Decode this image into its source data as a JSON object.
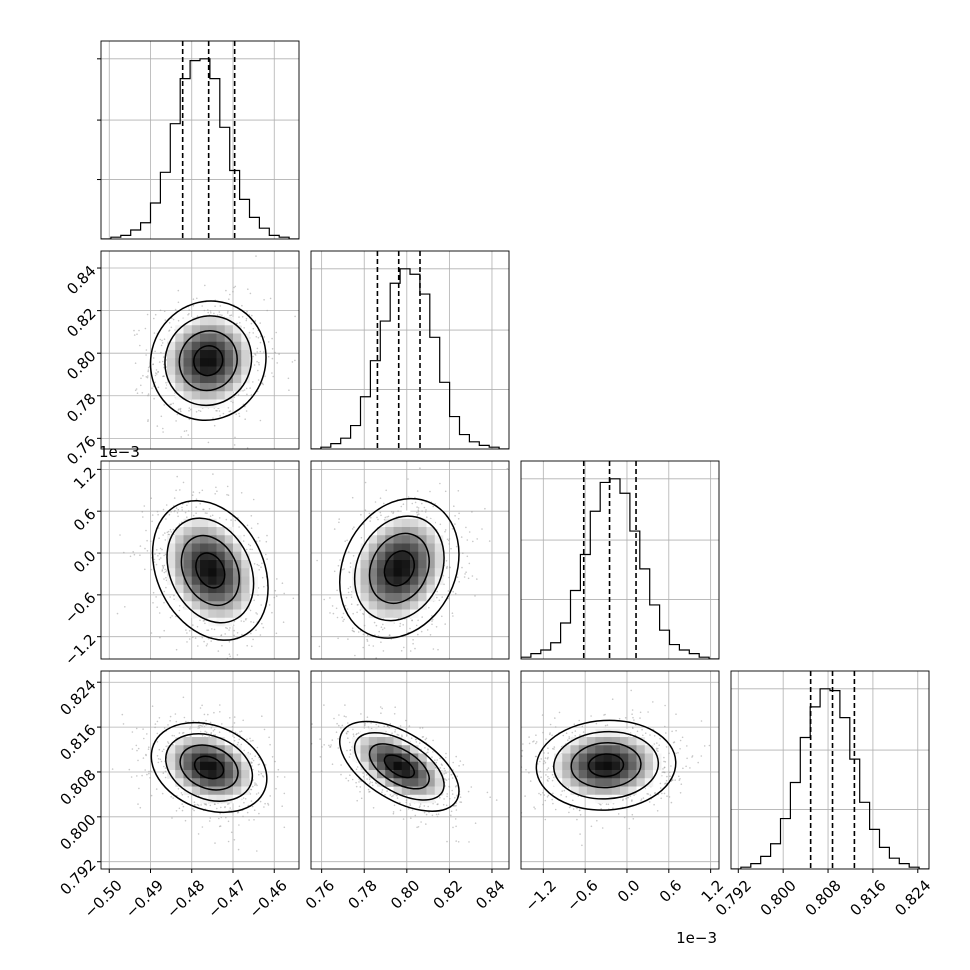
{
  "chart_data": {
    "type": "corner",
    "title": "",
    "parameters": [
      {
        "range": [
          -0.502,
          -0.454
        ],
        "ticks": [
          -0.5,
          -0.49,
          -0.48,
          -0.47,
          -0.46
        ],
        "tick_labels": [
          "−0.50",
          "−0.49",
          "−0.48",
          "−0.47",
          "−0.46"
        ],
        "offset_label": "",
        "quantiles": [
          -0.4822,
          -0.4759,
          -0.4696
        ],
        "hist_counts": [
          0,
          1,
          2,
          5,
          9,
          20,
          37,
          64,
          89,
          99,
          100,
          89,
          62,
          38,
          22,
          12,
          6,
          2,
          1,
          0
        ]
      },
      {
        "range": [
          0.755,
          0.848
        ],
        "ticks": [
          0.76,
          0.78,
          0.8,
          0.82,
          0.84
        ],
        "tick_labels": [
          "0.76",
          "0.78",
          "0.80",
          "0.82",
          "0.84"
        ],
        "offset_label": "",
        "quantiles": [
          0.7862,
          0.7962,
          0.8062
        ],
        "hist_counts": [
          0,
          1,
          3,
          6,
          13,
          29,
          49,
          71,
          92,
          100,
          97,
          86,
          62,
          37,
          18,
          8,
          4,
          2,
          1,
          0
        ]
      },
      {
        "range": [
          -1.52,
          1.32
        ],
        "ticks": [
          -1.2,
          -0.6,
          0.0,
          0.6,
          1.2
        ],
        "tick_labels": [
          "−1.2",
          "−0.6",
          "0.0",
          "0.6",
          "1.2"
        ],
        "offset_label": "1e−3",
        "quantiles": [
          -0.62,
          -0.25,
          0.13
        ],
        "hist_counts": [
          1,
          3,
          5,
          9,
          20,
          38,
          58,
          82,
          98,
          100,
          92,
          71,
          50,
          30,
          16,
          8,
          5,
          3,
          1,
          0
        ]
      },
      {
        "range": [
          0.7907,
          0.826
        ],
        "ticks": [
          0.792,
          0.8,
          0.808,
          0.816,
          0.824
        ],
        "tick_labels": [
          "0.792",
          "0.800",
          "0.808",
          "0.816",
          "0.824"
        ],
        "offset_label": "",
        "quantiles": [
          0.8049,
          0.8088,
          0.8127
        ],
        "hist_counts": [
          0,
          1,
          3,
          7,
          14,
          28,
          48,
          73,
          90,
          100,
          99,
          84,
          61,
          37,
          22,
          12,
          6,
          3,
          1,
          0
        ]
      }
    ],
    "pairs": [
      {
        "x": 0,
        "y": 1,
        "center": [
          -0.476,
          0.7965
        ],
        "sd": [
          0.007,
          0.014
        ],
        "corr": 0.05
      },
      {
        "x": 0,
        "y": 2,
        "center": [
          -0.4755,
          -0.25
        ],
        "sd": [
          0.007,
          0.5
        ],
        "corr": -0.25
      },
      {
        "x": 1,
        "y": 2,
        "center": [
          0.7965,
          -0.22
        ],
        "sd": [
          0.014,
          0.5
        ],
        "corr": 0.2
      },
      {
        "x": 0,
        "y": 3,
        "center": [
          -0.4758,
          0.8088
        ],
        "sd": [
          0.007,
          0.004
        ],
        "corr": -0.25
      },
      {
        "x": 1,
        "y": 3,
        "center": [
          0.7965,
          0.809
        ],
        "sd": [
          0.014,
          0.004
        ],
        "corr": -0.55
      },
      {
        "x": 2,
        "y": 3,
        "center": [
          -0.3,
          0.8092
        ],
        "sd": [
          0.5,
          0.004
        ],
        "corr": 0.05
      }
    ],
    "contour_levels_sigma": [
      0.5,
      1.0,
      1.5,
      2.0
    ],
    "grid": true,
    "legend": "none",
    "colors": {
      "line": "#000000",
      "grid": "#b0b0b0",
      "points": "#9a9a9a"
    }
  }
}
